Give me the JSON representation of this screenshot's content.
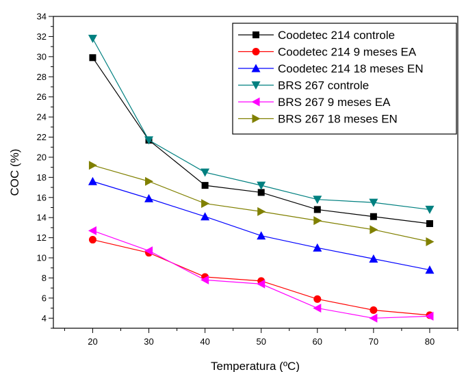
{
  "chart_data": {
    "type": "line",
    "xlabel": "Temperatura (ºC)",
    "ylabel": "COC (%)",
    "x": [
      20,
      30,
      40,
      50,
      60,
      70,
      80
    ],
    "xlim": [
      13,
      85
    ],
    "ylim": [
      3,
      34
    ],
    "xticks": [
      20,
      30,
      40,
      50,
      60,
      70,
      80
    ],
    "yticks": [
      4,
      6,
      8,
      10,
      12,
      14,
      16,
      18,
      20,
      22,
      24,
      26,
      28,
      30,
      32,
      34
    ],
    "legend_position": "top-right",
    "grid": false,
    "series": [
      {
        "name": "Coodetec 214 controle",
        "color": "#000000",
        "marker": "square",
        "values": [
          29.9,
          21.7,
          17.2,
          16.5,
          14.8,
          14.1,
          13.4
        ]
      },
      {
        "name": "Coodetec 214 9 meses EA",
        "color": "#ff0000",
        "marker": "circle",
        "values": [
          11.8,
          10.5,
          8.1,
          7.7,
          5.9,
          4.8,
          4.3
        ]
      },
      {
        "name": "Coodetec 214 18 meses EN",
        "color": "#0000ff",
        "marker": "triangle-up",
        "values": [
          17.6,
          15.9,
          14.1,
          12.2,
          11.0,
          9.9,
          8.8
        ]
      },
      {
        "name": "BRS 267 controle",
        "color": "#008080",
        "marker": "triangle-down",
        "values": [
          31.8,
          21.7,
          18.5,
          17.2,
          15.8,
          15.5,
          14.8
        ]
      },
      {
        "name": "BRS 267 9 meses EA",
        "color": "#ff00ff",
        "marker": "triangle-left",
        "values": [
          12.7,
          10.7,
          7.8,
          7.4,
          5.0,
          4.0,
          4.2
        ]
      },
      {
        "name": "BRS 267 18 meses EN",
        "color": "#808000",
        "marker": "triangle-right",
        "values": [
          19.2,
          17.6,
          15.4,
          14.6,
          13.7,
          12.8,
          11.6
        ]
      }
    ]
  }
}
